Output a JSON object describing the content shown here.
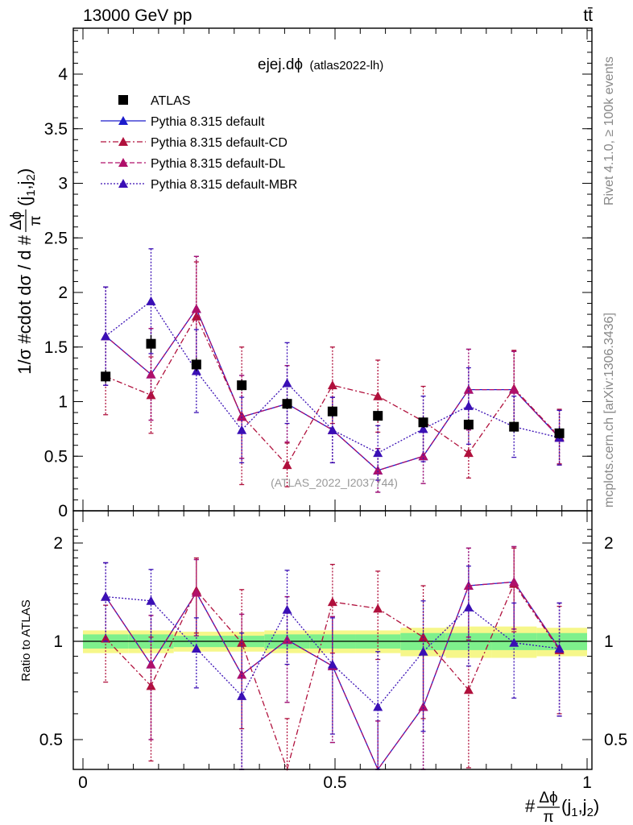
{
  "header": {
    "left": "13000 GeV pp",
    "right": "tt̄"
  },
  "side_labels": {
    "rivet": "Rivet 4.1.0, ≥ 100k events",
    "mcplots": "mcplots.cern.ch [arXiv:1306.3436]"
  },
  "annotation": "(ATLAS_2022_I2037744)",
  "chart_data": [
    {
      "type": "scatter",
      "panel": "main",
      "title": "ejej.dϕ",
      "title_note": "(atlas2022-lh)",
      "ylabel": "1/σ #cdot dσ / d #Δϕ/π(j1,j2)",
      "ylabel_main": "1/σ #cdot dσ / d #",
      "ylabel_frac_num": "Δϕ",
      "ylabel_frac_den": "π",
      "ylabel_tail": "(j",
      "ylabel_sub1": "1",
      "ylabel_comma": ",j",
      "ylabel_sub2": "2",
      "ylabel_close": ")",
      "xlim": [
        0,
        1
      ],
      "ylim": [
        0,
        4.4
      ],
      "yticks": [
        0,
        0.5,
        1,
        1.5,
        2,
        2.5,
        3,
        3.5,
        4
      ],
      "ytick_labels": [
        "0",
        "0.5",
        "1",
        "1.5",
        "2",
        "2.5",
        "3",
        "3.5",
        "4"
      ],
      "x": [
        0.045,
        0.135,
        0.225,
        0.315,
        0.405,
        0.495,
        0.585,
        0.675,
        0.765,
        0.855,
        0.945
      ],
      "series": [
        {
          "name": "ATLAS",
          "color": "#000000",
          "style": "data",
          "values": [
            1.23,
            1.53,
            1.34,
            1.15,
            0.98,
            0.91,
            0.87,
            0.81,
            0.79,
            0.77,
            0.71
          ],
          "err": [
            0.06,
            0.08,
            0.06,
            0.05,
            0.05,
            0.05,
            0.05,
            0.05,
            0.05,
            0.05,
            0.05
          ]
        },
        {
          "name": "Pythia 8.315 default",
          "color": "#1b1bcc",
          "style": "solid",
          "values": [
            1.6,
            1.25,
            1.85,
            0.86,
            0.98,
            0.74,
            0.37,
            0.5,
            1.11,
            1.11,
            0.67
          ],
          "err": [
            0.45,
            0.42,
            0.48,
            0.38,
            0.35,
            0.3,
            0.2,
            0.25,
            0.37,
            0.35,
            0.25
          ]
        },
        {
          "name": "Pythia 8.315 default-CD",
          "color": "#b0103c",
          "style": "dashdot",
          "values": [
            1.23,
            1.06,
            1.78,
            0.87,
            0.42,
            1.15,
            1.05,
            0.82,
            0.53,
            1.12,
            0.68
          ],
          "err": [
            0.35,
            0.35,
            0.5,
            0.63,
            0.2,
            0.35,
            0.33,
            0.32,
            0.23,
            0.35,
            0.25
          ]
        },
        {
          "name": "Pythia 8.315 default-DL",
          "color": "#b0106a",
          "style": "dashed",
          "values": [
            1.6,
            1.25,
            1.85,
            0.86,
            0.98,
            0.74,
            0.37,
            0.5,
            1.11,
            1.11,
            0.67
          ],
          "err": [
            0.45,
            0.42,
            0.48,
            0.38,
            0.35,
            0.3,
            0.2,
            0.25,
            0.37,
            0.35,
            0.25
          ]
        },
        {
          "name": "Pythia 8.315 default-MBR",
          "color": "#3a0fb5",
          "style": "dotted",
          "values": [
            1.6,
            1.92,
            1.28,
            0.74,
            1.17,
            0.74,
            0.53,
            0.75,
            0.96,
            0.77,
            0.67
          ],
          "err": [
            0.45,
            0.48,
            0.38,
            0.3,
            0.37,
            0.3,
            0.25,
            0.3,
            0.35,
            0.28,
            0.25
          ]
        }
      ],
      "legend": [
        "ATLAS",
        "Pythia 8.315 default",
        "Pythia 8.315 default-CD",
        "Pythia 8.315 default-DL",
        "Pythia 8.315 default-MBR"
      ],
      "legend_position": "top-left"
    },
    {
      "type": "scatter",
      "panel": "ratio",
      "ylabel": "Ratio to ATLAS",
      "xlabel": "#Δϕ/π(j1,j2)",
      "xlabel_hash": "#",
      "xlabel_frac_num": "Δϕ",
      "xlabel_frac_den": "π",
      "xlabel_tail": "(j",
      "xlabel_sub1": "1",
      "xlabel_comma": ",j",
      "xlabel_sub2": "2",
      "xlabel_close": ")",
      "xlim": [
        0,
        1
      ],
      "ylim": [
        0.35,
        2.3
      ],
      "yticks": [
        0.5,
        1,
        2
      ],
      "ytick_labels": [
        "0.5",
        "1",
        "2"
      ],
      "xticks": [
        0,
        0.5,
        1
      ],
      "xtick_labels": [
        "0",
        "0.5",
        "1"
      ],
      "band_edges": [
        0,
        0.09,
        0.18,
        0.27,
        0.36,
        0.45,
        0.54,
        0.63,
        0.72,
        0.81,
        0.9,
        1.0
      ],
      "band_inner": [
        0.05,
        0.05,
        0.04,
        0.04,
        0.05,
        0.05,
        0.05,
        0.06,
        0.06,
        0.06,
        0.06
      ],
      "band_outer": [
        0.08,
        0.08,
        0.07,
        0.07,
        0.08,
        0.08,
        0.08,
        0.1,
        0.11,
        0.11,
        0.1
      ],
      "band_colors": {
        "inner": "#7ef08c",
        "outer": "#f6f78a"
      },
      "series": [
        {
          "name": "Pythia 8.315 default",
          "color": "#1b1bcc",
          "style": "solid",
          "values": [
            1.37,
            0.85,
            1.41,
            0.79,
            1.01,
            0.84,
            0.37,
            0.63,
            1.48,
            1.52,
            0.95
          ],
          "err": [
            0.37,
            0.35,
            0.37,
            0.42,
            0.36,
            0.35,
            0.2,
            0.3,
            0.45,
            0.43,
            0.36
          ]
        },
        {
          "name": "Pythia 8.315 default-CD",
          "color": "#b0103c",
          "style": "dashdot",
          "values": [
            1.02,
            0.73,
            1.43,
            0.99,
            0.38,
            1.32,
            1.26,
            1.03,
            0.71,
            1.5,
            0.94
          ],
          "err": [
            0.27,
            0.3,
            0.37,
            0.45,
            0.2,
            0.4,
            0.38,
            0.45,
            0.3,
            0.43,
            0.34
          ]
        },
        {
          "name": "Pythia 8.315 default-DL",
          "color": "#b0106a",
          "style": "dashed",
          "values": [
            1.37,
            0.85,
            1.41,
            0.79,
            1.01,
            0.84,
            0.37,
            0.63,
            1.48,
            1.52,
            0.95
          ],
          "err": [
            0.37,
            0.35,
            0.37,
            0.42,
            0.36,
            0.35,
            0.2,
            0.3,
            0.45,
            0.43,
            0.36
          ]
        },
        {
          "name": "Pythia 8.315 default-MBR",
          "color": "#3a0fb5",
          "style": "dotted",
          "values": [
            1.37,
            1.33,
            0.95,
            0.68,
            1.25,
            0.85,
            0.63,
            0.93,
            1.27,
            0.99,
            0.95
          ],
          "err": [
            0.37,
            0.33,
            0.23,
            0.38,
            0.4,
            0.33,
            0.3,
            0.4,
            0.43,
            0.32,
            0.36
          ]
        }
      ]
    }
  ]
}
